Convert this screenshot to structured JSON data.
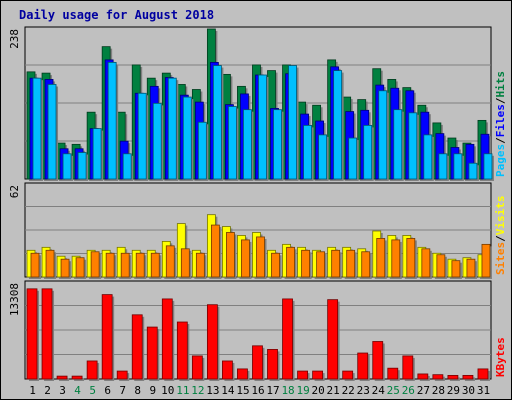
{
  "chart_data": [
    {
      "type": "bar",
      "title": "Daily usage for August 2018",
      "categories": [
        "1",
        "2",
        "3",
        "4",
        "5",
        "6",
        "7",
        "8",
        "9",
        "10",
        "11",
        "12",
        "13",
        "14",
        "15",
        "16",
        "17",
        "18",
        "19",
        "20",
        "21",
        "22",
        "23",
        "24",
        "25",
        "26",
        "27",
        "28",
        "29",
        "30",
        "31"
      ],
      "weekend_days": [
        "4",
        "5",
        "11",
        "12",
        "18",
        "19",
        "25",
        "26"
      ],
      "ymax_label": "238",
      "ylim": [
        0,
        238
      ],
      "axis_title": [
        "Pages",
        "Files",
        "Hits"
      ],
      "series": [
        {
          "name": "Hits",
          "color": "#008040",
          "values": [
            170,
            168,
            57,
            55,
            106,
            210,
            106,
            181,
            160,
            168,
            150,
            142,
            238,
            166,
            147,
            181,
            172,
            181,
            122,
            117,
            189,
            130,
            126,
            175,
            158,
            145,
            117,
            89,
            65,
            57,
            93
          ]
        },
        {
          "name": "Files",
          "color": "#0000ff",
          "values": [
            160,
            158,
            48,
            48,
            80,
            189,
            60,
            136,
            147,
            161,
            133,
            122,
            185,
            118,
            135,
            165,
            112,
            167,
            103,
            92,
            178,
            107,
            109,
            149,
            144,
            140,
            106,
            72,
            50,
            55,
            71
          ]
        },
        {
          "name": "Pages",
          "color": "#00c0ff",
          "values": [
            160,
            150,
            40,
            42,
            80,
            185,
            40,
            136,
            120,
            160,
            130,
            90,
            180,
            115,
            110,
            165,
            110,
            180,
            85,
            70,
            172,
            65,
            85,
            140,
            110,
            105,
            70,
            40,
            40,
            25,
            40
          ]
        }
      ]
    },
    {
      "type": "bar",
      "ymax_label": "62",
      "ylim": [
        0,
        62
      ],
      "axis_title": [
        "Sites",
        "Visits"
      ],
      "series": [
        {
          "name": "Visits",
          "color": "#ffff00",
          "values": [
            18,
            20,
            14,
            14,
            18,
            18,
            20,
            18,
            18,
            24,
            36,
            18,
            42,
            34,
            28,
            30,
            18,
            22,
            20,
            18,
            20,
            20,
            19,
            31,
            28,
            28,
            20,
            16,
            12,
            13,
            15
          ]
        },
        {
          "name": "Sites",
          "color": "#ff8000",
          "values": [
            16,
            18,
            12,
            13,
            17,
            16,
            16,
            16,
            16,
            21,
            19,
            16,
            35,
            30,
            25,
            27,
            16,
            20,
            18,
            17,
            18,
            18,
            17,
            26,
            25,
            26,
            19,
            15,
            11,
            12,
            22
          ]
        }
      ]
    },
    {
      "type": "bar",
      "ymax_label": "13308",
      "ylim": [
        0,
        13308
      ],
      "axis_title": [
        "KBytes"
      ],
      "series": [
        {
          "name": "KBytes",
          "color": "#ff0000",
          "values": [
            12500,
            12500,
            400,
            400,
            2500,
            11700,
            1100,
            8900,
            7200,
            11100,
            7900,
            3200,
            10300,
            2500,
            1400,
            4600,
            4100,
            11100,
            1100,
            1100,
            11000,
            1100,
            3600,
            5200,
            1500,
            3200,
            700,
            600,
            500,
            500,
            1400
          ]
        }
      ]
    }
  ]
}
